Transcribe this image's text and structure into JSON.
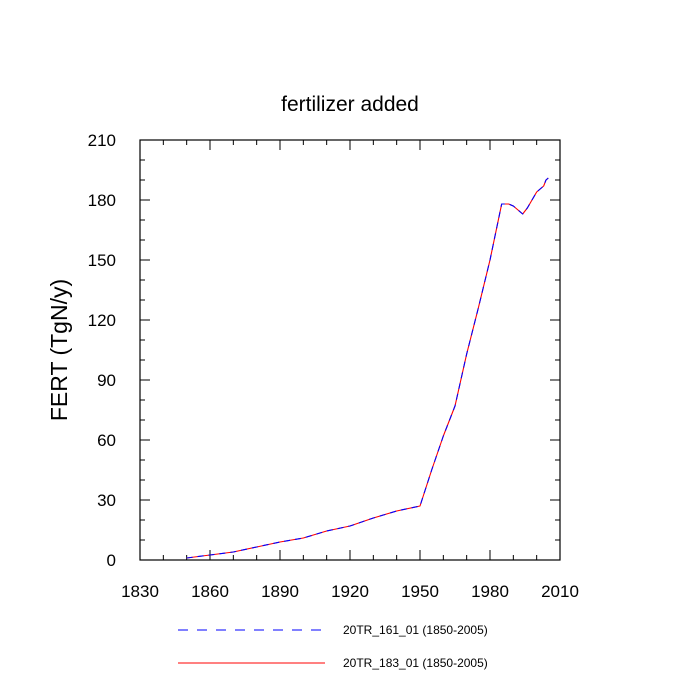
{
  "chart_data": {
    "type": "line",
    "title": "fertilizer added",
    "xlabel": "",
    "ylabel": "FERT  (TgN/y)",
    "xlim": [
      1830,
      2010
    ],
    "ylim": [
      0,
      210
    ],
    "xticks": [
      1830,
      1860,
      1890,
      1920,
      1950,
      1980,
      2010
    ],
    "yticks": [
      0,
      30,
      60,
      90,
      120,
      150,
      180,
      210
    ],
    "grid": false,
    "legend_position": "bottom",
    "series": [
      {
        "name": "20TR_161_01 (1850-2005)",
        "color": "#0000ff",
        "dash": "dashed",
        "x": [
          1850,
          1860,
          1870,
          1880,
          1890,
          1900,
          1910,
          1920,
          1930,
          1940,
          1950,
          1955,
          1960,
          1965,
          1970,
          1975,
          1980,
          1985,
          1988,
          1990,
          1992,
          1994,
          1996,
          1998,
          2000,
          2001,
          2002,
          2003,
          2004,
          2005
        ],
        "values": [
          1,
          2.5,
          4,
          6.5,
          9,
          11,
          14.5,
          17,
          21,
          24.5,
          27,
          45,
          62,
          77,
          103,
          126,
          150,
          178,
          178,
          177,
          175,
          173,
          176,
          180,
          184,
          185,
          186,
          187,
          190,
          191
        ]
      },
      {
        "name": "20TR_183_01 (1850-2005)",
        "color": "#ff0000",
        "dash": "solid",
        "x": [
          1850,
          1860,
          1870,
          1880,
          1890,
          1900,
          1910,
          1920,
          1930,
          1940,
          1950,
          1955,
          1960,
          1965,
          1970,
          1975,
          1980,
          1985,
          1988,
          1990,
          1992,
          1994,
          1996,
          1998,
          2000,
          2001,
          2002,
          2003,
          2004,
          2005
        ],
        "values": [
          1,
          2.5,
          4,
          6.5,
          9,
          11,
          14.5,
          17,
          21,
          24.5,
          27,
          45,
          62,
          77,
          103,
          126,
          150,
          178,
          178,
          177,
          175,
          173,
          176,
          180,
          184,
          185,
          186,
          187,
          190,
          191
        ]
      }
    ]
  }
}
